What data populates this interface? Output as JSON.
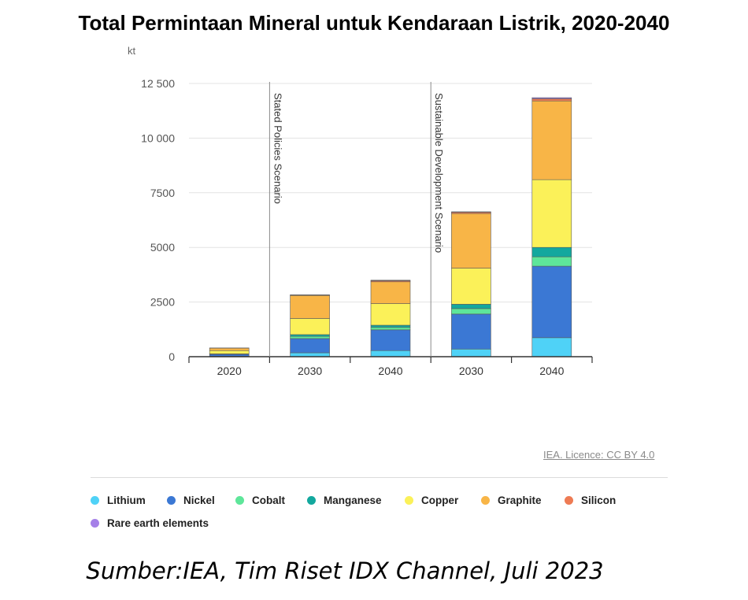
{
  "title": "Total Permintaan Mineral untuk Kendaraan Listrik, 2020-2040",
  "licence": "IEA. Licence: CC BY 4.0",
  "source": "Sumber:IEA, Tim Riset IDX Channel, Juli 2023",
  "colors": {
    "Lithium": "#4fd2f7",
    "Nickel": "#3b78d4",
    "Cobalt": "#5ee69a",
    "Manganese": "#13a89e",
    "Copper": "#fbf159",
    "Graphite": "#f8b547",
    "Silicon": "#ee7b54",
    "Rare earth elements": "#a580e8"
  },
  "chart_data": {
    "type": "bar",
    "stacked": true,
    "ylabel": "kt",
    "ylim": [
      0,
      12500
    ],
    "yticks": [
      0,
      2500,
      5000,
      7500,
      10000,
      12500
    ],
    "ytick_labels": [
      "0",
      "2500",
      "5000",
      "7500",
      "10 000",
      "12 500"
    ],
    "categories": [
      "2020",
      "2030",
      "2040",
      "2030",
      "2040"
    ],
    "scenarios": [
      {
        "label": "Stated Policies Scenario",
        "starts_before_category": 1
      },
      {
        "label": "Sustainable Development Scenario",
        "starts_before_category": 3
      }
    ],
    "legend_position": "bottom",
    "series": [
      {
        "name": "Lithium",
        "values": [
          20,
          180,
          280,
          350,
          870
        ]
      },
      {
        "name": "Nickel",
        "values": [
          90,
          650,
          950,
          1600,
          3270
        ]
      },
      {
        "name": "Cobalt",
        "values": [
          10,
          100,
          110,
          250,
          430
        ]
      },
      {
        "name": "Manganese",
        "values": [
          10,
          80,
          100,
          200,
          430
        ]
      },
      {
        "name": "Copper",
        "values": [
          150,
          740,
          990,
          1650,
          3100
        ]
      },
      {
        "name": "Graphite",
        "values": [
          110,
          1050,
          1000,
          2500,
          3600
        ]
      },
      {
        "name": "Silicon",
        "values": [
          5,
          20,
          50,
          60,
          100
        ]
      },
      {
        "name": "Rare earth elements",
        "values": [
          5,
          10,
          20,
          20,
          50
        ]
      }
    ]
  }
}
